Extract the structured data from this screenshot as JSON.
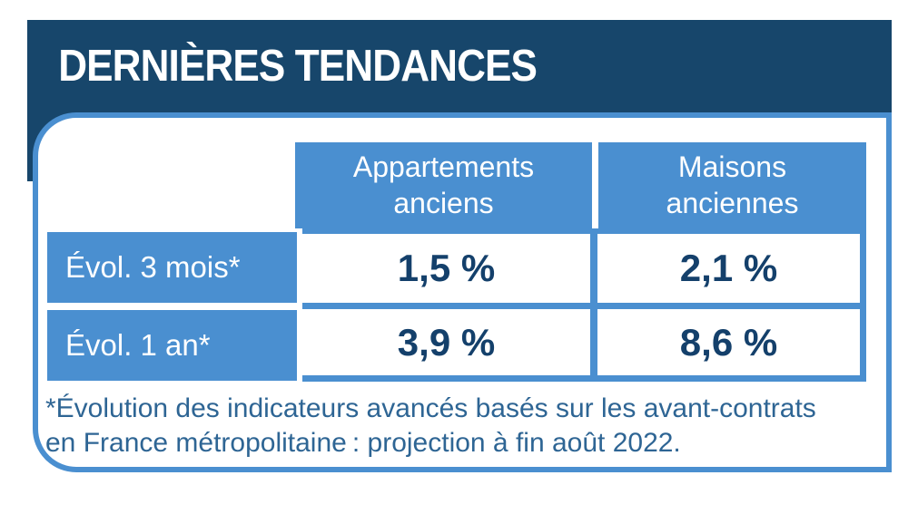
{
  "header": {
    "title": "DERNIÈRES TENDANCES"
  },
  "table": {
    "column_headers": [
      "Appartements\nanciens",
      "Maisons\nanciennes"
    ],
    "rows": [
      {
        "label": "Évol. 3 mois*",
        "values": [
          "1,5 %",
          "2,1 %"
        ]
      },
      {
        "label": "Évol. 1 an*",
        "values": [
          "3,9 %",
          "8,6 %"
        ]
      }
    ]
  },
  "footnote": "*Évolution des indicateurs avancés basés sur les avant-contrats\nen France métropolitaine : projection à fin août 2022.",
  "colors": {
    "dark_navy": "#17466B",
    "medium_blue": "#4A8FD0",
    "value_navy": "#14406B",
    "footnote_blue": "#2E6594",
    "background": "#FFFFFF"
  },
  "chart_data": {
    "type": "table",
    "title": "DERNIÈRES TENDANCES",
    "columns": [
      "Appartements anciens",
      "Maisons anciennes"
    ],
    "row_labels": [
      "Évol. 3 mois*",
      "Évol. 1 an*"
    ],
    "values_pct": [
      [
        1.5,
        2.1
      ],
      [
        3.9,
        8.6
      ]
    ],
    "footnote": "*Évolution des indicateurs avancés basés sur les avant-contrats en France métropolitaine : projection à fin août 2022."
  }
}
